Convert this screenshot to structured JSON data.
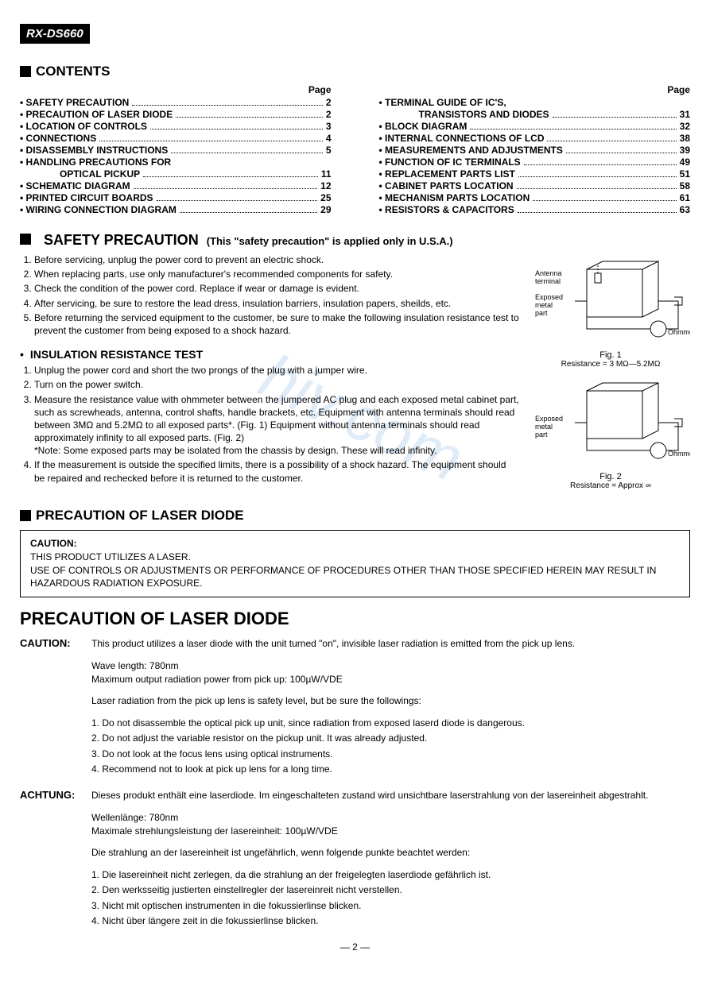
{
  "model": "RX-DS660",
  "contents_title": "CONTENTS",
  "page_label": "Page",
  "toc_left": [
    {
      "label": "• SAFETY PRECAUTION",
      "pg": "2",
      "sub": false
    },
    {
      "label": "• PRECAUTION OF LASER DIODE",
      "pg": "2",
      "sub": false
    },
    {
      "label": "• LOCATION OF CONTROLS",
      "pg": "3",
      "sub": false
    },
    {
      "label": "• CONNECTIONS",
      "pg": "4",
      "sub": false
    },
    {
      "label": "• DISASSEMBLY INSTRUCTIONS",
      "pg": "5",
      "sub": false
    },
    {
      "label": "• HANDLING PRECAUTIONS FOR",
      "pg": "",
      "sub": false
    },
    {
      "label": "OPTICAL PICKUP",
      "pg": "11",
      "sub": true
    },
    {
      "label": "• SCHEMATIC DIAGRAM",
      "pg": "12",
      "sub": false
    },
    {
      "label": "• PRINTED CIRCUIT BOARDS",
      "pg": "25",
      "sub": false
    },
    {
      "label": "• WIRING CONNECTION DIAGRAM",
      "pg": "29",
      "sub": false
    }
  ],
  "toc_right": [
    {
      "label": "• TERMINAL GUIDE OF IC'S,",
      "pg": "",
      "sub": false
    },
    {
      "label": "TRANSISTORS AND DIODES",
      "pg": "31",
      "sub": true
    },
    {
      "label": "• BLOCK DIAGRAM",
      "pg": "32",
      "sub": false
    },
    {
      "label": "• INTERNAL CONNECTIONS OF LCD",
      "pg": "38",
      "sub": false
    },
    {
      "label": "• MEASUREMENTS AND ADJUSTMENTS",
      "pg": "39",
      "sub": false
    },
    {
      "label": "• FUNCTION OF IC TERMINALS",
      "pg": "49",
      "sub": false
    },
    {
      "label": "• REPLACEMENT PARTS LIST",
      "pg": "51",
      "sub": false
    },
    {
      "label": "• CABINET PARTS LOCATION",
      "pg": "58",
      "sub": false
    },
    {
      "label": "• MECHANISM PARTS LOCATION",
      "pg": "61",
      "sub": false
    },
    {
      "label": "• RESISTORS & CAPACITORS",
      "pg": "63",
      "sub": false
    }
  ],
  "safety_title": "SAFETY PRECAUTION",
  "safety_note": "(This \"safety precaution\" is applied only in U.S.A.)",
  "safety_list": [
    "Before servicing, unplug the power cord to prevent an electric shock.",
    "When replacing parts, use only manufacturer's recommended components for safety.",
    "Check the condition of the power cord. Replace if wear or damage is evident.",
    "After servicing, be sure to restore the lead dress, insulation barriers, insulation papers, sheilds, etc.",
    "Before returning the serviced equipment to the customer, be sure to make the following insulation resistance test to prevent the customer from being exposed to a shock hazard."
  ],
  "ins_title": "INSULATION RESISTANCE TEST",
  "ins_list": [
    "Unplug the power cord and short the two prongs of the plug with a jumper wire.",
    "Turn on the power switch.",
    "Measure the resistance value with ohmmeter between the jumpered AC plug and each exposed metal cabinet part, such as screwheads, antenna, control shafts, handle brackets, etc. Equipment with antenna terminals should read between 3MΩ and 5.2MΩ to all exposed parts*. (Fig. 1) Equipment without antenna terminals should read approximately infinity to all exposed parts. (Fig. 2)\n*Note: Some exposed parts may be isolated from the chassis by design. These will read infinity.",
    "If the measurement is outside the specified limits, there is a possibility of a shock hazard. The equipment should be repaired and rechecked before it is returned to the customer."
  ],
  "fig1": {
    "antenna": "Antenna\nterminal",
    "exposed": "Exposed\nmetal\npart",
    "ohm": "Ohmmeter",
    "cap": "Fig. 1",
    "res": "Resistance = 3 MΩ—5.2MΩ"
  },
  "fig2": {
    "exposed": "Exposed\nmetal\npart",
    "ohm": "Ohmmeter",
    "cap": "Fig. 2",
    "res": "Resistance = Approx ∞"
  },
  "laser_title": "PRECAUTION OF LASER DIODE",
  "caution_box": {
    "label": "CAUTION:",
    "l1": "THIS PRODUCT UTILIZES A LASER.",
    "l2": "USE OF CONTROLS OR ADJUSTMENTS OR PERFORMANCE OF PROCEDURES OTHER THAN THOSE SPECIFIED HEREIN MAY RESULT IN HAZARDOUS RADIATION EXPOSURE."
  },
  "big_title": "PRECAUTION OF LASER DIODE",
  "caution_en": {
    "label": "CAUTION:",
    "p1": "This product utilizes a laser diode with the unit turned \"on\", invisible laser radiation is emitted from the pick up lens.",
    "p2a": "Wave length: 780nm",
    "p2b": "Maximum output radiation power from pick up: 100µW/VDE",
    "p3": "Laser radiation from the pick up lens is safety level, but be sure the followings:",
    "list": [
      "1. Do not disassemble the optical pick up unit, since radiation from exposed laserd diode is dangerous.",
      "2. Do not adjust the variable resistor on the pickup unit.   It was already adjusted.",
      "3. Do not look at the focus lens using optical instruments.",
      "4. Recommend not to look at pick up lens for a long time."
    ]
  },
  "caution_de": {
    "label": "ACHTUNG:",
    "p1": "Dieses produkt enthält eine laserdiode.   Im eingeschalteten zustand wird unsichtbare laserstrahlung von der lasereinheit abgestrahlt.",
    "p2a": "Wellenlänge: 780nm",
    "p2b": "Maximale strehlungsleistung der lasereinheit: 100µW/VDE",
    "p3": "Die strahlung an der lasereinheit ist ungefährlich, wenn folgende punkte beachtet werden:",
    "list": [
      "1. Die lasereinheit nicht zerlegen, da die strahlung an der freigelegten laserdiode gefährlich ist.",
      "2. Den werksseitig justierten einstellregler der lasereinreit nicht verstellen.",
      "3. Nicht mit optischen instrumenten in die fokussierlinse blicken.",
      "4. Nicht über längere zeit in die fokussierlinse blicken."
    ]
  },
  "page_number": "— 2 —",
  "watermark": "hiv.com"
}
